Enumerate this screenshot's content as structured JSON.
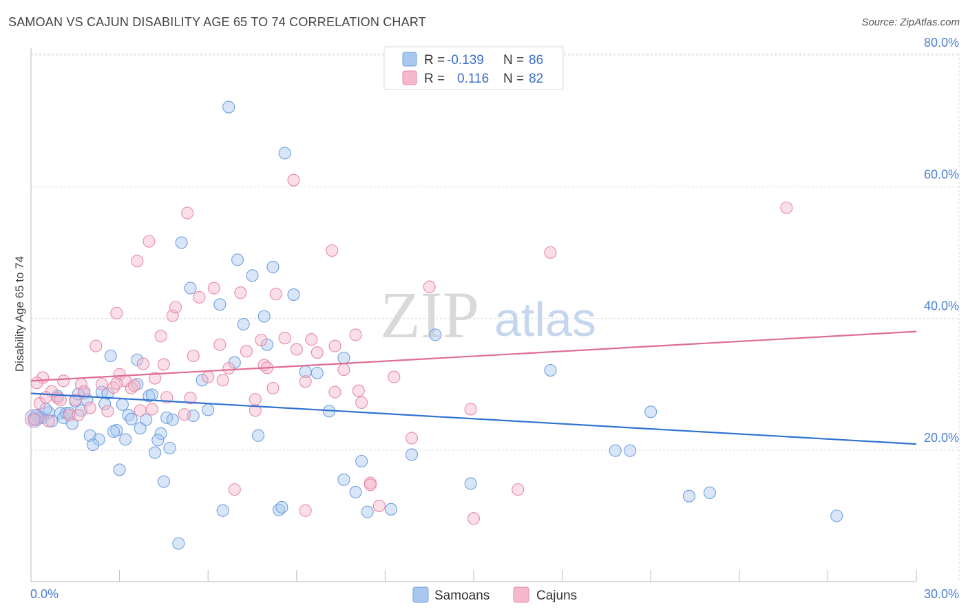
{
  "header": {
    "title": "SAMOAN VS CAJUN DISABILITY AGE 65 TO 74 CORRELATION CHART",
    "source": "Source: ZipAtlas.com"
  },
  "watermark": {
    "zip": "ZIP",
    "atlas": "atlas"
  },
  "legend_top": {
    "rows": [
      {
        "r_label": "R =",
        "r_value": "-0.139",
        "n_label": "N =",
        "n_value": "86",
        "color": "#a9c8f0"
      },
      {
        "r_label": "R =",
        "r_value": "0.116",
        "n_label": "N =",
        "n_value": "82",
        "color": "#f5b8cc"
      }
    ]
  },
  "legend_bottom": {
    "items": [
      {
        "label": "Samoans",
        "color": "#a9c8f0"
      },
      {
        "label": "Cajuns",
        "color": "#f5b8cc"
      }
    ]
  },
  "chart_data": {
    "type": "scatter",
    "ylabel": "Disability Age 65 to 74",
    "xlim": [
      0,
      30
    ],
    "ylim": [
      0,
      82
    ],
    "x_tick_labels": [
      "0.0%",
      "30.0%"
    ],
    "y_ticks": [
      20,
      40,
      60,
      80
    ],
    "y_tick_labels": [
      "20.0%",
      "40.0%",
      "60.0%",
      "80.0%"
    ],
    "grid": true,
    "series": [
      {
        "name": "Samoans",
        "color": "#6f9fe0",
        "fill": "#a9c8f0",
        "trend": {
          "x": [
            0,
            30
          ],
          "y": [
            28.6,
            20.9
          ],
          "color": "#2f72d1"
        },
        "points": [
          [
            0.1,
            24.8
          ],
          [
            0.2,
            25.3
          ],
          [
            0.4,
            24.9
          ],
          [
            0.6,
            25.7
          ],
          [
            0.7,
            24.4
          ],
          [
            0.9,
            28.2
          ],
          [
            1.0,
            25.6
          ],
          [
            1.1,
            24.9
          ],
          [
            1.2,
            25.6
          ],
          [
            1.4,
            24.0
          ],
          [
            1.5,
            27.4
          ],
          [
            1.7,
            26.0
          ],
          [
            1.8,
            28.6
          ],
          [
            1.9,
            27.6
          ],
          [
            2.0,
            22.2
          ],
          [
            2.3,
            21.6
          ],
          [
            2.4,
            28.8
          ],
          [
            2.5,
            27.0
          ],
          [
            2.6,
            28.6
          ],
          [
            2.7,
            34.3
          ],
          [
            2.9,
            23.0
          ],
          [
            3.0,
            17.0
          ],
          [
            3.1,
            26.9
          ],
          [
            3.2,
            21.6
          ],
          [
            3.3,
            25.3
          ],
          [
            3.4,
            24.7
          ],
          [
            3.6,
            33.7
          ],
          [
            3.7,
            23.3
          ],
          [
            3.9,
            24.6
          ],
          [
            4.0,
            28.2
          ],
          [
            4.2,
            19.6
          ],
          [
            4.4,
            22.5
          ],
          [
            4.5,
            15.2
          ],
          [
            4.6,
            24.9
          ],
          [
            4.7,
            20.3
          ],
          [
            4.8,
            24.6
          ],
          [
            5.0,
            5.8
          ],
          [
            5.1,
            51.5
          ],
          [
            5.4,
            44.6
          ],
          [
            5.8,
            30.6
          ],
          [
            6.0,
            26.1
          ],
          [
            6.4,
            42.1
          ],
          [
            6.7,
            72.1
          ],
          [
            6.9,
            33.3
          ],
          [
            7.0,
            48.9
          ],
          [
            7.2,
            39.1
          ],
          [
            7.5,
            46.5
          ],
          [
            7.7,
            22.2
          ],
          [
            7.9,
            40.3
          ],
          [
            8.0,
            36.0
          ],
          [
            8.2,
            47.8
          ],
          [
            8.4,
            10.9
          ],
          [
            8.6,
            65.1
          ],
          [
            8.9,
            43.6
          ],
          [
            9.3,
            31.9
          ],
          [
            9.7,
            31.7
          ],
          [
            10.1,
            25.9
          ],
          [
            10.6,
            34.0
          ],
          [
            11.0,
            13.6
          ],
          [
            11.2,
            18.3
          ],
          [
            11.4,
            10.6
          ],
          [
            12.2,
            11.0
          ],
          [
            12.9,
            19.3
          ],
          [
            13.7,
            37.5
          ],
          [
            14.9,
            14.9
          ],
          [
            17.6,
            32.1
          ],
          [
            19.8,
            19.9
          ],
          [
            20.3,
            19.9
          ],
          [
            21.0,
            25.8
          ],
          [
            22.3,
            13.0
          ],
          [
            23.0,
            13.5
          ],
          [
            27.3,
            10.0
          ],
          [
            0.3,
            25.0
          ],
          [
            1.3,
            25.6
          ],
          [
            2.1,
            20.8
          ],
          [
            3.6,
            30.0
          ],
          [
            4.3,
            21.5
          ],
          [
            6.5,
            10.8
          ],
          [
            8.5,
            11.3
          ],
          [
            10.6,
            15.5
          ],
          [
            0.5,
            26.2
          ],
          [
            1.6,
            28.5
          ],
          [
            2.8,
            22.8
          ],
          [
            4.1,
            28.4
          ],
          [
            5.5,
            25.2
          ],
          [
            0.15,
            24.6
          ]
        ]
      },
      {
        "name": "Cajuns",
        "color": "#e889a8",
        "fill": "#f5b8cc",
        "trend": {
          "x": [
            0,
            30
          ],
          "y": [
            30.5,
            38.0
          ],
          "color": "#e06c95"
        },
        "points": [
          [
            0.1,
            24.6
          ],
          [
            0.3,
            27.1
          ],
          [
            0.4,
            31.0
          ],
          [
            0.6,
            24.4
          ],
          [
            0.7,
            28.9
          ],
          [
            0.9,
            27.9
          ],
          [
            1.1,
            30.5
          ],
          [
            1.3,
            25.3
          ],
          [
            1.5,
            27.6
          ],
          [
            1.7,
            30.0
          ],
          [
            1.8,
            28.9
          ],
          [
            2.0,
            26.4
          ],
          [
            2.2,
            35.8
          ],
          [
            2.4,
            30.0
          ],
          [
            2.6,
            25.9
          ],
          [
            2.8,
            29.5
          ],
          [
            2.9,
            40.8
          ],
          [
            3.0,
            31.5
          ],
          [
            3.2,
            30.5
          ],
          [
            3.4,
            29.4
          ],
          [
            3.6,
            48.7
          ],
          [
            3.7,
            26.0
          ],
          [
            3.8,
            33.1
          ],
          [
            4.0,
            51.7
          ],
          [
            4.2,
            30.9
          ],
          [
            4.4,
            37.3
          ],
          [
            4.5,
            33.0
          ],
          [
            4.8,
            40.4
          ],
          [
            4.9,
            41.7
          ],
          [
            5.3,
            56.0
          ],
          [
            5.5,
            34.3
          ],
          [
            5.7,
            43.2
          ],
          [
            6.0,
            31.1
          ],
          [
            6.2,
            44.6
          ],
          [
            6.4,
            36.0
          ],
          [
            6.7,
            32.4
          ],
          [
            6.9,
            14.0
          ],
          [
            7.1,
            43.9
          ],
          [
            7.3,
            35.0
          ],
          [
            7.6,
            27.7
          ],
          [
            7.8,
            36.7
          ],
          [
            7.9,
            32.9
          ],
          [
            8.2,
            29.4
          ],
          [
            8.3,
            43.7
          ],
          [
            8.6,
            37.0
          ],
          [
            8.9,
            61.0
          ],
          [
            9.0,
            35.3
          ],
          [
            9.3,
            30.4
          ],
          [
            9.5,
            36.8
          ],
          [
            9.7,
            34.8
          ],
          [
            10.2,
            50.3
          ],
          [
            10.3,
            35.8
          ],
          [
            10.6,
            32.2
          ],
          [
            11.0,
            37.5
          ],
          [
            11.1,
            29.0
          ],
          [
            11.5,
            15.0
          ],
          [
            11.8,
            11.5
          ],
          [
            12.3,
            31.1
          ],
          [
            12.9,
            21.8
          ],
          [
            13.5,
            44.8
          ],
          [
            14.9,
            26.2
          ],
          [
            15.0,
            9.6
          ],
          [
            16.5,
            14.0
          ],
          [
            17.6,
            50.0
          ],
          [
            25.6,
            56.8
          ],
          [
            2.9,
            30.1
          ],
          [
            3.5,
            29.8
          ],
          [
            5.4,
            27.9
          ],
          [
            7.6,
            26.0
          ],
          [
            9.3,
            10.8
          ],
          [
            11.2,
            27.2
          ],
          [
            11.5,
            14.7
          ],
          [
            0.5,
            28.0
          ],
          [
            1.0,
            27.6
          ],
          [
            1.6,
            25.3
          ],
          [
            4.1,
            26.2
          ],
          [
            5.2,
            25.4
          ],
          [
            6.5,
            30.6
          ],
          [
            8.0,
            32.5
          ],
          [
            10.3,
            28.8
          ],
          [
            4.6,
            28.0
          ],
          [
            0.2,
            30.2
          ]
        ]
      }
    ]
  }
}
